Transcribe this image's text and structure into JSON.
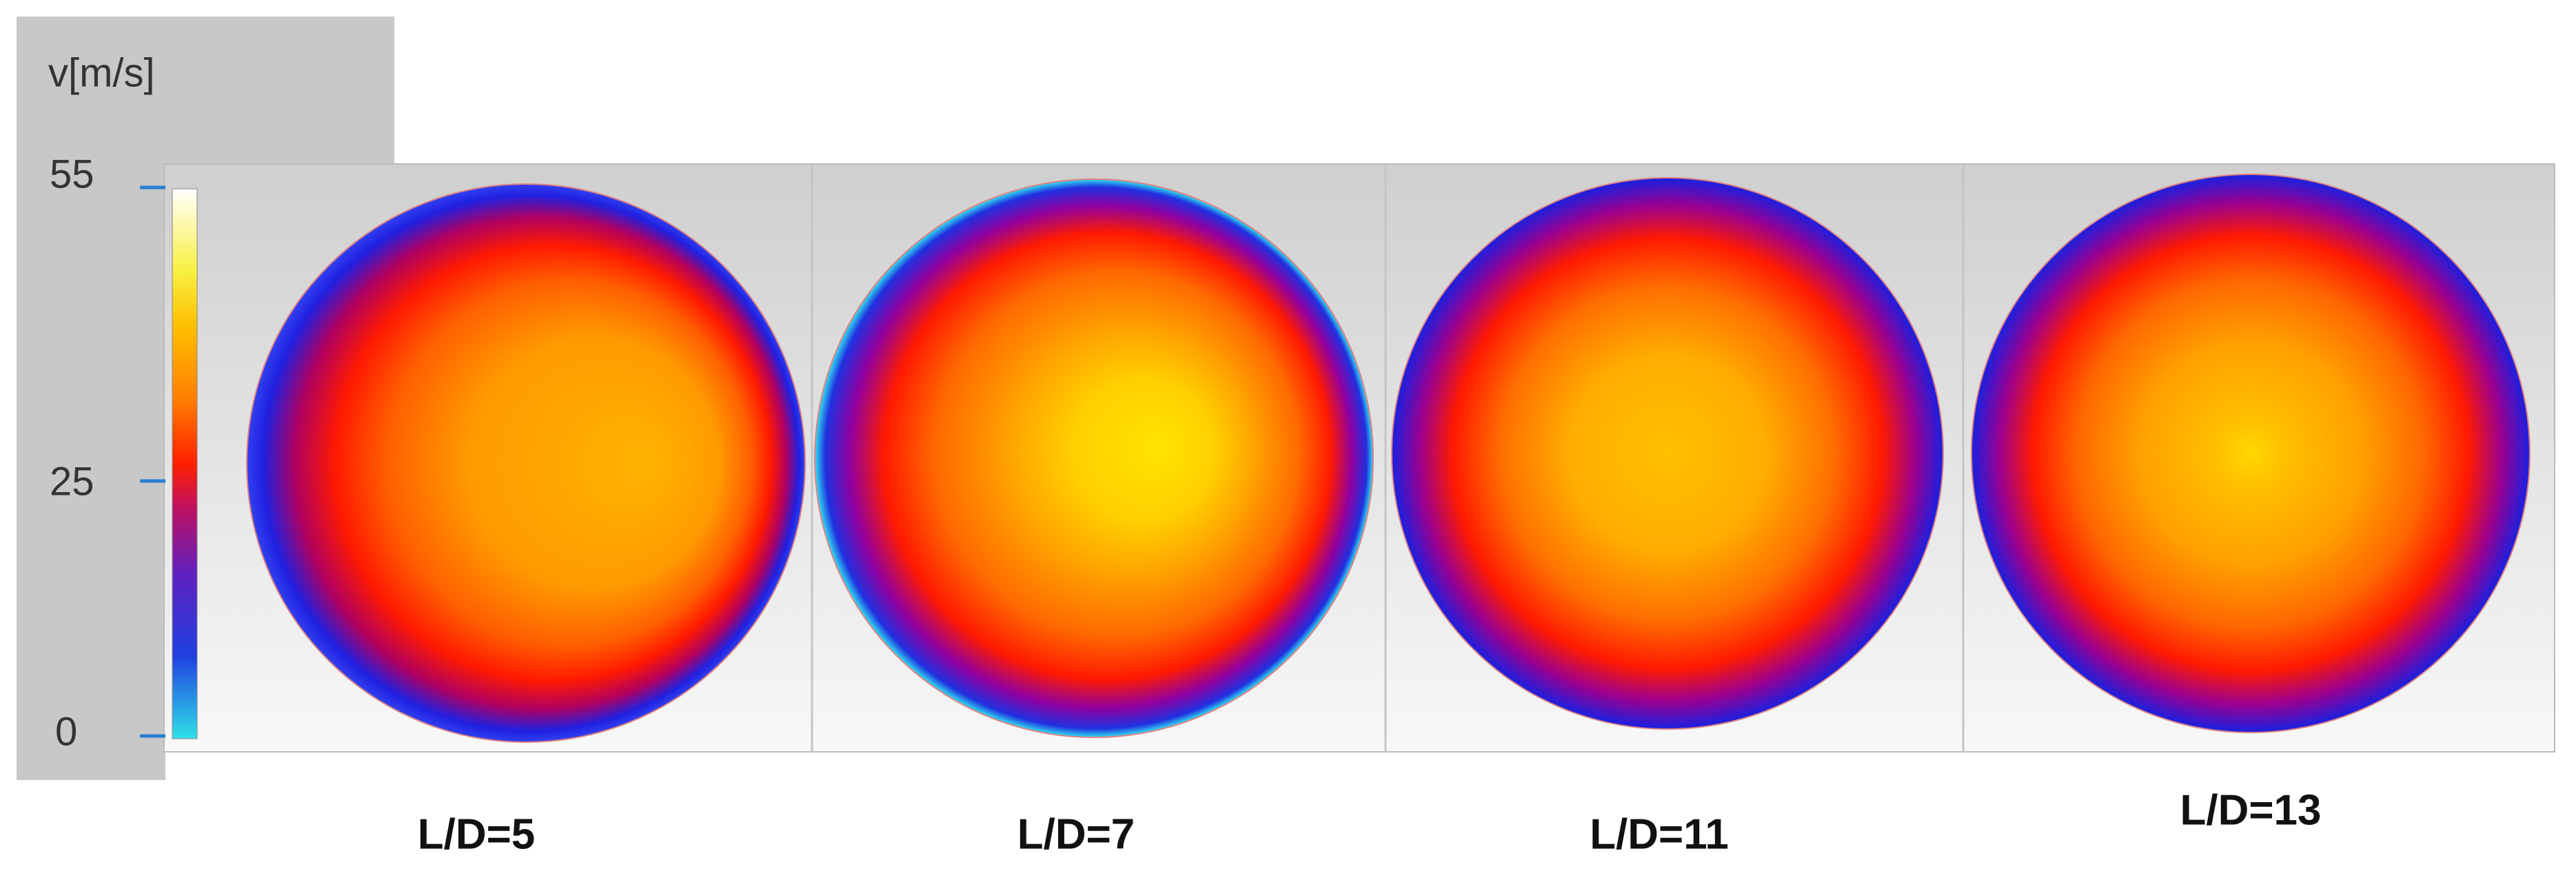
{
  "colorbar": {
    "label": "v[m/s]",
    "ticks": [
      55,
      25,
      0
    ]
  },
  "panels": [
    {
      "label": "L/D=5"
    },
    {
      "label": "L/D=7"
    },
    {
      "label": "L/D=11"
    },
    {
      "label": "L/D=13"
    }
  ]
}
